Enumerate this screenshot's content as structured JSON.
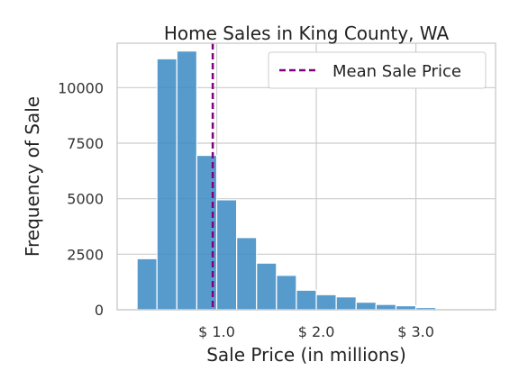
{
  "chart_data": {
    "type": "bar",
    "title": "Home Sales in King County, WA",
    "xlabel": "Sale Price (in millions)",
    "ylabel": "Frequency of Sale",
    "bin_width": 0.2,
    "bins": [
      {
        "start": 0.2,
        "count": 2300
      },
      {
        "start": 0.4,
        "count": 11300
      },
      {
        "start": 0.6,
        "count": 11650
      },
      {
        "start": 0.8,
        "count": 6950
      },
      {
        "start": 1.0,
        "count": 4950
      },
      {
        "start": 1.2,
        "count": 3250
      },
      {
        "start": 1.4,
        "count": 2100
      },
      {
        "start": 1.6,
        "count": 1550
      },
      {
        "start": 1.8,
        "count": 880
      },
      {
        "start": 2.0,
        "count": 680
      },
      {
        "start": 2.2,
        "count": 580
      },
      {
        "start": 2.4,
        "count": 340
      },
      {
        "start": 2.6,
        "count": 240
      },
      {
        "start": 2.8,
        "count": 180
      },
      {
        "start": 3.0,
        "count": 100
      }
    ],
    "mean_line": {
      "x": 0.96,
      "label": "Mean Sale Price",
      "color": "#800080"
    },
    "xlim": [
      0.0,
      3.8
    ],
    "ylim": [
      0,
      12000
    ],
    "x_ticks": [
      1.0,
      2.0,
      3.0
    ],
    "x_tick_labels": [
      "$ 1.0",
      "$ 2.0",
      "$ 3.0"
    ],
    "y_ticks": [
      0,
      2500,
      5000,
      7500,
      10000
    ],
    "y_tick_labels": [
      "0",
      "2500",
      "5000",
      "7500",
      "10000"
    ],
    "grid": true,
    "legend_position": "top-right",
    "bar_color": "#3a89c4",
    "grid_color": "#cccccc"
  }
}
